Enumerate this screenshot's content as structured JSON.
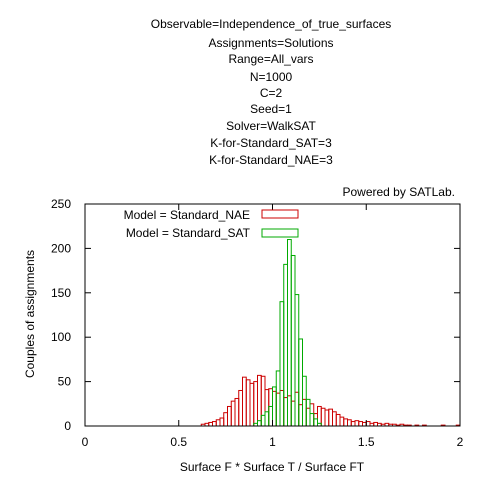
{
  "chart_data": {
    "type": "bar",
    "title_lines": [
      "Observable=Independence_of_true_surfaces",
      "Assignments=Solutions",
      "Range=All_vars",
      "N=1000",
      "C=2",
      "Seed=1",
      "Solver=WalkSAT",
      "K-for-Standard_SAT=3",
      "K-for-Standard_NAE=3"
    ],
    "credit": "Powered by SATLab.",
    "xlabel": "Surface F * Surface T / Surface FT",
    "ylabel": "Couples of assignments",
    "xlim": [
      0,
      2
    ],
    "ylim": [
      0,
      250
    ],
    "x_ticks": [
      0,
      0.5,
      1,
      1.5,
      2
    ],
    "x_tick_labels": [
      "0",
      "0.5",
      "1",
      "1.5",
      "2"
    ],
    "y_ticks": [
      0,
      50,
      100,
      150,
      200,
      250
    ],
    "y_tick_labels": [
      "0",
      "50",
      "100",
      "150",
      "200",
      "250"
    ],
    "legend_position": "top-left",
    "bin_width": 0.02,
    "series": [
      {
        "name": "Model = Standard_NAE",
        "color": "#cc0000",
        "bins": [
          [
            0.62,
            2
          ],
          [
            0.64,
            3
          ],
          [
            0.66,
            4
          ],
          [
            0.68,
            5
          ],
          [
            0.7,
            7
          ],
          [
            0.72,
            9
          ],
          [
            0.74,
            15
          ],
          [
            0.76,
            22
          ],
          [
            0.78,
            28
          ],
          [
            0.8,
            31
          ],
          [
            0.82,
            40
          ],
          [
            0.84,
            55
          ],
          [
            0.86,
            52
          ],
          [
            0.88,
            48
          ],
          [
            0.9,
            50
          ],
          [
            0.92,
            57
          ],
          [
            0.94,
            56
          ],
          [
            0.96,
            41
          ],
          [
            0.98,
            42
          ],
          [
            1.0,
            39
          ],
          [
            1.02,
            37
          ],
          [
            1.04,
            40
          ],
          [
            1.06,
            32
          ],
          [
            1.08,
            34
          ],
          [
            1.1,
            28
          ],
          [
            1.12,
            38
          ],
          [
            1.14,
            24
          ],
          [
            1.16,
            30
          ],
          [
            1.18,
            20
          ],
          [
            1.2,
            25
          ],
          [
            1.22,
            14
          ],
          [
            1.24,
            22
          ],
          [
            1.26,
            20
          ],
          [
            1.28,
            18
          ],
          [
            1.3,
            19
          ],
          [
            1.32,
            16
          ],
          [
            1.34,
            13
          ],
          [
            1.36,
            10
          ],
          [
            1.38,
            8
          ],
          [
            1.4,
            7
          ],
          [
            1.42,
            5
          ],
          [
            1.44,
            6
          ],
          [
            1.46,
            5
          ],
          [
            1.48,
            4
          ],
          [
            1.5,
            5
          ],
          [
            1.52,
            3
          ],
          [
            1.54,
            4
          ],
          [
            1.56,
            3
          ],
          [
            1.58,
            2
          ],
          [
            1.6,
            3
          ],
          [
            1.62,
            2
          ],
          [
            1.64,
            2
          ],
          [
            1.66,
            1
          ],
          [
            1.68,
            2
          ],
          [
            1.7,
            1
          ],
          [
            1.72,
            1
          ],
          [
            1.76,
            1
          ],
          [
            1.8,
            1
          ],
          [
            1.9,
            1
          ],
          [
            1.98,
            1
          ]
        ]
      },
      {
        "name": "Model = Standard_SAT",
        "color": "#00aa00",
        "bins": [
          [
            0.9,
            3
          ],
          [
            0.92,
            6
          ],
          [
            0.94,
            12
          ],
          [
            0.96,
            16
          ],
          [
            0.98,
            22
          ],
          [
            1.0,
            44
          ],
          [
            1.02,
            62
          ],
          [
            1.04,
            140
          ],
          [
            1.06,
            182
          ],
          [
            1.08,
            210
          ],
          [
            1.1,
            192
          ],
          [
            1.12,
            148
          ],
          [
            1.14,
            98
          ],
          [
            1.16,
            56
          ],
          [
            1.18,
            30
          ],
          [
            1.2,
            14
          ],
          [
            1.22,
            8
          ],
          [
            1.24,
            3
          ]
        ]
      }
    ]
  }
}
